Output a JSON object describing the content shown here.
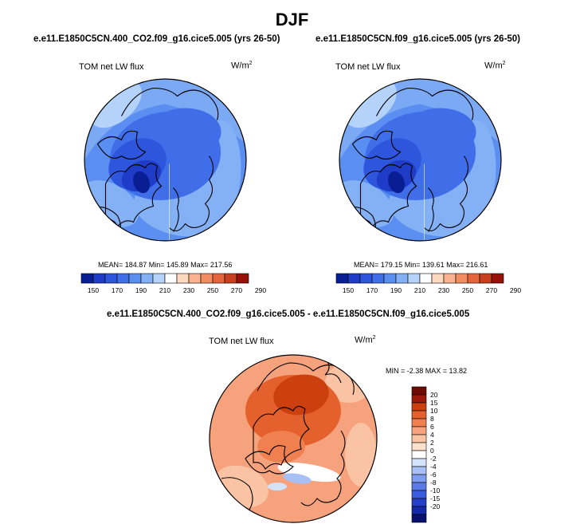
{
  "title": "DJF",
  "colors": {
    "abs_scale": [
      "#0a1e94",
      "#1e3cc8",
      "#2e56dc",
      "#3f6ee8",
      "#5a8ef0",
      "#84b0f5",
      "#b4d2fa",
      "#ffffff",
      "#fbd8c0",
      "#f8b28e",
      "#f28c62",
      "#e4643c",
      "#c84020",
      "#961208"
    ],
    "diff_scale": [
      "#08126e",
      "#1428a8",
      "#2440c8",
      "#3a5ae0",
      "#5a7ae8",
      "#7e9cf0",
      "#a8c0f6",
      "#d4e2fb",
      "#ffffff",
      "#fce0cc",
      "#fac4a4",
      "#f6a27c",
      "#f08050",
      "#e4602c",
      "#cc4010",
      "#9c1808",
      "#6e0a04"
    ]
  },
  "chart_data": [
    {
      "type": "heatmap",
      "projection": "north-polar-stereographic",
      "title": "e.e11.E1850C5CN.400_CO2.f09_g16.cice5.005 (yrs 26-50)",
      "variable": "TOM net LW flux",
      "units_base": "W/m",
      "units_exp": "2",
      "stats_text": "MEAN= 184.87  Min= 145.89  Max= 217.56",
      "stats": {
        "mean": 184.87,
        "min": 145.89,
        "max": 217.56
      },
      "levels": [
        150,
        160,
        170,
        180,
        190,
        200,
        210,
        220,
        230,
        240,
        250,
        260,
        270,
        280,
        290
      ],
      "tick_labels": [
        "150",
        "170",
        "190",
        "210",
        "230",
        "250",
        "270",
        "290"
      ],
      "map_description": "polar-cap"
    },
    {
      "type": "heatmap",
      "projection": "north-polar-stereographic",
      "title": "e.e11.E1850C5CN.f09_g16.cice5.005 (yrs 26-50)",
      "variable": "TOM net LW flux",
      "units_base": "W/m",
      "units_exp": "2",
      "stats_text": "MEAN= 179.15  Min= 139.61  Max= 216.61",
      "stats": {
        "mean": 179.15,
        "min": 139.61,
        "max": 216.61
      },
      "levels": [
        150,
        160,
        170,
        180,
        190,
        200,
        210,
        220,
        230,
        240,
        250,
        260,
        270,
        280,
        290
      ],
      "tick_labels": [
        "150",
        "170",
        "190",
        "210",
        "230",
        "250",
        "270",
        "290"
      ],
      "map_description": "polar-cap"
    },
    {
      "type": "heatmap",
      "projection": "north-polar-stereographic",
      "title": "e.e11.E1850C5CN.400_CO2.f09_g16.cice5.005 - e.e11.E1850C5CN.f09_g16.cice5.005",
      "variable": "TOM net LW flux",
      "units_base": "W/m",
      "units_exp": "2",
      "stats_text": "MIN =  -2.38 MAX =  13.82",
      "stats": {
        "min": -2.38,
        "max": 13.82
      },
      "levels": [
        -20,
        -15,
        -10,
        -8,
        -6,
        -4,
        -2,
        0,
        2,
        4,
        6,
        8,
        10,
        15,
        20
      ],
      "tick_labels": [
        "20",
        "15",
        "10",
        "8",
        "6",
        "4",
        "2",
        "0",
        "-2",
        "-4",
        "-6",
        "-8",
        "-10",
        "-15",
        "-20"
      ],
      "map_description": "difference"
    }
  ]
}
